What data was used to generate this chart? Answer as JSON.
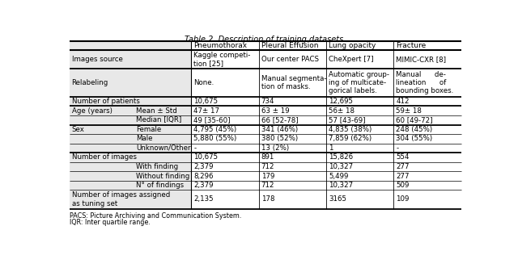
{
  "title": "Table 2. Description of training datasets.",
  "hdr_labels": [
    "Pneumothorax",
    "Pleural Effusion",
    "Lung opacity",
    "Fracture"
  ],
  "footnotes": [
    "PACS: Picture Archiving and Communication System.",
    "IQR: Inter quartile range."
  ],
  "rows": [
    {
      "label1": "Images source",
      "label2": "",
      "nlines": 2,
      "vals": [
        "Kaggle competi-\ntion [25]",
        "Our center PACS",
        "CheXpert [7]",
        "MIMIC-CXR [8]"
      ],
      "thick_top": true
    },
    {
      "label1": "Relabeling",
      "label2": "",
      "nlines": 3,
      "vals": [
        "None.",
        "Manual segmenta-\ntion of masks.",
        "Automatic group-\ning of multicate-\ngorical labels.",
        "Manual      de-\nlineation      of\nbounding boxes."
      ],
      "thick_top": true
    },
    {
      "label1": "Number of patients",
      "label2": "",
      "nlines": 1,
      "vals": [
        "10,675",
        "734",
        "12,695",
        "412"
      ],
      "thick_top": true
    },
    {
      "label1": "Age (years)",
      "label2": "Mean ± Std",
      "nlines": 1,
      "vals": [
        "47± 17",
        "63 ± 19",
        "56± 18",
        "59± 18"
      ],
      "thick_top": true
    },
    {
      "label1": "",
      "label2": "Median [IQR]",
      "nlines": 1,
      "vals": [
        "49 [35-60]",
        "66 [52-78]",
        "57 [43-69]",
        "60 [49-72]"
      ],
      "thick_top": false
    },
    {
      "label1": "Sex",
      "label2": "Female",
      "nlines": 1,
      "vals": [
        "4,795 (45%)",
        "341 (46%)",
        "4,835 (38%)",
        "248 (45%)"
      ],
      "thick_top": true
    },
    {
      "label1": "",
      "label2": "Male",
      "nlines": 1,
      "vals": [
        "5,880 (55%)",
        "380 (52%)",
        "7,859 (62%)",
        "304 (55%)"
      ],
      "thick_top": false
    },
    {
      "label1": "",
      "label2": "Unknown/Other",
      "nlines": 1,
      "vals": [
        "-",
        "13 (2%)",
        "1",
        "-"
      ],
      "thick_top": false
    },
    {
      "label1": "Number of images",
      "label2": "",
      "nlines": 1,
      "vals": [
        "10,675",
        "891",
        "15,826",
        "554"
      ],
      "thick_top": true
    },
    {
      "label1": "",
      "label2": "With finding",
      "nlines": 1,
      "vals": [
        "2,379",
        "712",
        "10,327",
        "277"
      ],
      "thick_top": false
    },
    {
      "label1": "",
      "label2": "Without finding",
      "nlines": 1,
      "vals": [
        "8,296",
        "179",
        "5,499",
        "277"
      ],
      "thick_top": false
    },
    {
      "label1": "",
      "label2": "N° of findings",
      "nlines": 1,
      "vals": [
        "2,379",
        "712",
        "10,327",
        "509"
      ],
      "thick_top": false
    },
    {
      "label1": "Number of images assigned\nas tuning set",
      "label2": "",
      "nlines": 2,
      "vals": [
        "2,135",
        "178",
        "3165",
        "109"
      ],
      "thick_top": false
    }
  ],
  "gray_bg": "#e8e8e8",
  "white_bg": "#ffffff",
  "text_color": "#000000",
  "line_color": "#000000"
}
